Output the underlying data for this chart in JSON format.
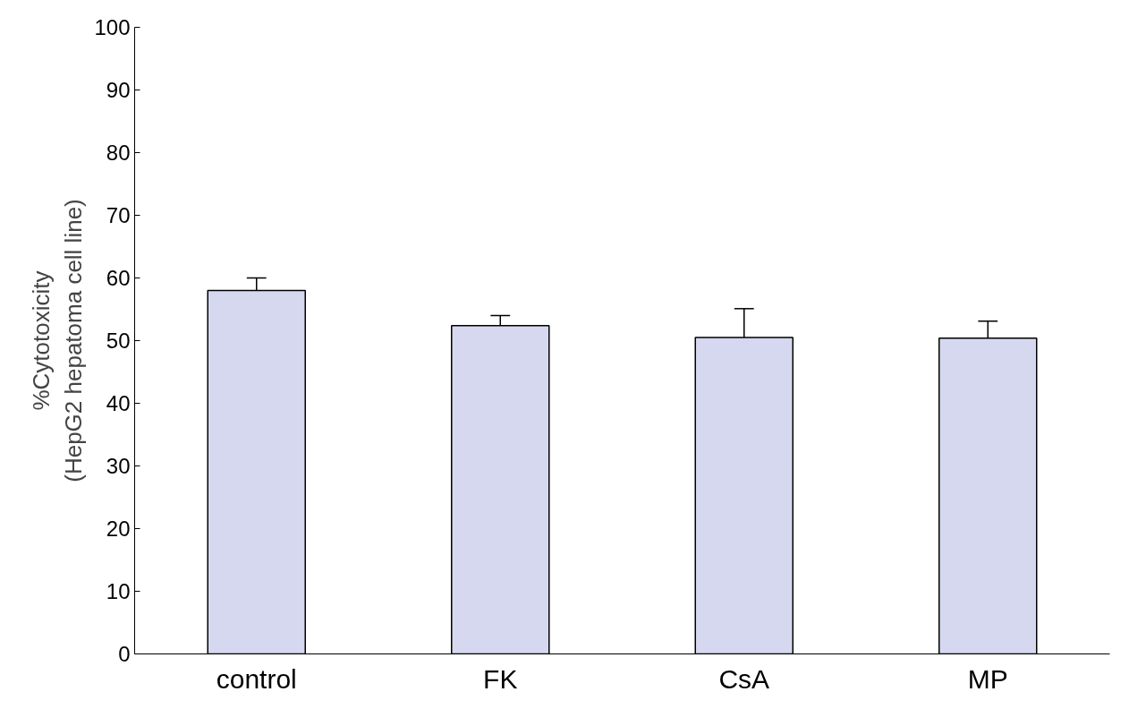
{
  "chart_data": {
    "type": "bar",
    "ylabel": "%Cytotoxicity\n(HepG2 hepatoma cell line)",
    "categories": [
      "control",
      "FK",
      "CsA",
      "MP"
    ],
    "values": [
      58,
      52.4,
      50.5,
      50.4
    ],
    "errors": [
      [
        58,
        60
      ],
      [
        52.4,
        54
      ],
      [
        50.5,
        55.1
      ],
      [
        50.4,
        53.1
      ]
    ],
    "color": "#d6d8ef",
    "ylim": [
      0,
      100
    ],
    "yticks": [
      0,
      10,
      20,
      30,
      40,
      50,
      60,
      70,
      80,
      90,
      100
    ],
    "grid": false
  }
}
